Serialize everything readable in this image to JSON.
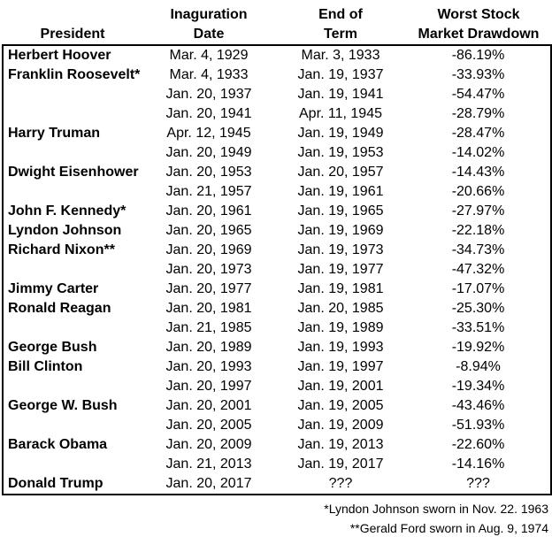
{
  "colors": {
    "text": "#000000",
    "background": "#ffffff",
    "border": "#000000"
  },
  "chart_data": {
    "type": "table",
    "title": "",
    "columns": [
      "President",
      "Inaguration Date",
      "End of Term",
      "Worst Stock Market Drawdown"
    ],
    "header_lines": [
      [
        "",
        "President"
      ],
      [
        "Inaguration",
        "Date"
      ],
      [
        "End of",
        "Term"
      ],
      [
        "Worst Stock",
        "Market Drawdown"
      ]
    ],
    "rows": [
      [
        "Herbert Hoover",
        "Mar. 4, 1929",
        "Mar. 3, 1933",
        "-86.19%"
      ],
      [
        "Franklin Roosevelt*",
        "Mar. 4, 1933",
        "Jan. 19, 1937",
        "-33.93%"
      ],
      [
        "",
        "Jan. 20, 1937",
        "Jan. 19, 1941",
        "-54.47%"
      ],
      [
        "",
        "Jan. 20, 1941",
        "Apr. 11, 1945",
        "-28.79%"
      ],
      [
        "Harry Truman",
        "Apr. 12, 1945",
        "Jan. 19, 1949",
        "-28.47%"
      ],
      [
        "",
        "Jan. 20, 1949",
        "Jan. 19, 1953",
        "-14.02%"
      ],
      [
        "Dwight Eisenhower",
        "Jan. 20, 1953",
        "Jan. 20, 1957",
        "-14.43%"
      ],
      [
        "",
        "Jan. 21, 1957",
        "Jan. 19, 1961",
        "-20.66%"
      ],
      [
        "John F. Kennedy*",
        "Jan. 20, 1961",
        "Jan. 19, 1965",
        "-27.97%"
      ],
      [
        "Lyndon Johnson",
        "Jan. 20, 1965",
        "Jan. 19, 1969",
        "-22.18%"
      ],
      [
        "Richard Nixon**",
        "Jan. 20, 1969",
        "Jan. 19, 1973",
        "-34.73%"
      ],
      [
        "",
        "Jan. 20, 1973",
        "Jan. 19, 1977",
        "-47.32%"
      ],
      [
        "Jimmy Carter",
        "Jan. 20, 1977",
        "Jan. 19, 1981",
        "-17.07%"
      ],
      [
        "Ronald Reagan",
        "Jan. 20, 1981",
        "Jan. 20, 1985",
        "-25.30%"
      ],
      [
        "",
        "Jan. 21, 1985",
        "Jan. 19, 1989",
        "-33.51%"
      ],
      [
        "George Bush",
        "Jan. 20, 1989",
        "Jan. 19, 1993",
        "-19.92%"
      ],
      [
        "Bill Clinton",
        "Jan. 20, 1993",
        "Jan. 19, 1997",
        "-8.94%"
      ],
      [
        "",
        "Jan. 20, 1997",
        "Jan. 19, 2001",
        "-19.34%"
      ],
      [
        "George W. Bush",
        "Jan. 20, 2001",
        "Jan. 19, 2005",
        "-43.46%"
      ],
      [
        "",
        "Jan. 20, 2005",
        "Jan. 19, 2009",
        "-51.93%"
      ],
      [
        "Barack Obama",
        "Jan. 20, 2009",
        "Jan. 19, 2013",
        "-22.60%"
      ],
      [
        "",
        "Jan. 21, 2013",
        "Jan. 19, 2017",
        "-14.16%"
      ],
      [
        "Donald Trump",
        "Jan. 20, 2017",
        "???",
        "???"
      ]
    ],
    "footnotes": [
      "*Lyndon Johnson sworn in Nov. 22. 1963",
      "**Gerald Ford sworn in Aug. 9, 1974"
    ]
  }
}
